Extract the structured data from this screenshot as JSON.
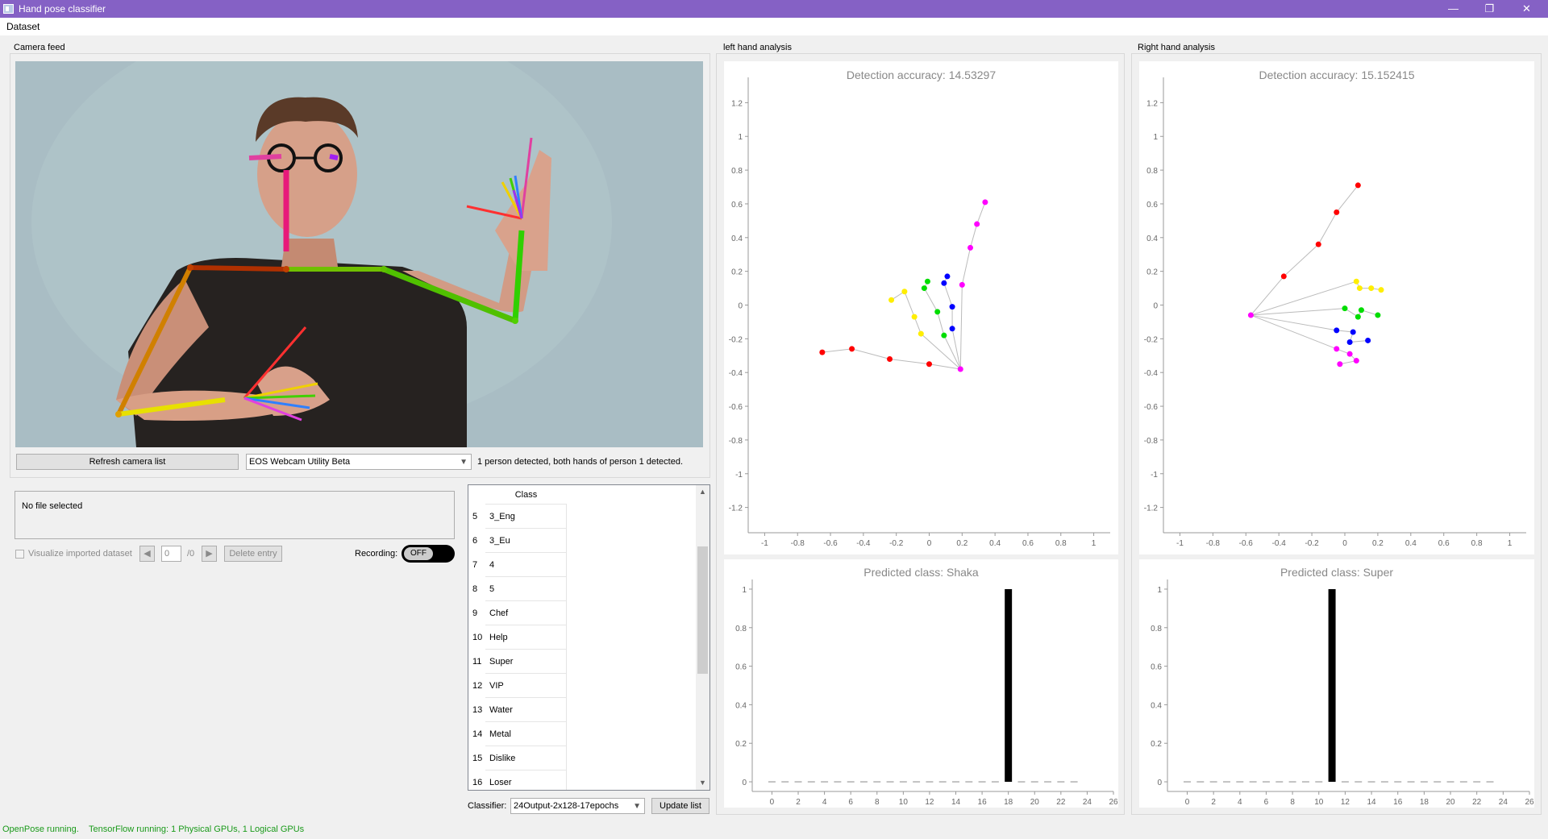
{
  "window": {
    "title": "Hand pose classifier",
    "minimize_glyph": "—",
    "restore_glyph": "❐",
    "close_glyph": "✕"
  },
  "menu": {
    "dataset": "Dataset"
  },
  "camera": {
    "group_label": "Camera feed",
    "refresh_button": "Refresh camera list",
    "selected_camera": "EOS Webcam Utility Beta",
    "detection_status": "1 person detected, both hands of person 1 detected."
  },
  "dataset": {
    "file_status": "No file selected",
    "visualize_label": "Visualize imported dataset",
    "entry_index": "0",
    "entry_total": "/0",
    "delete_button": "Delete entry",
    "recording_label": "Recording:",
    "recording_state": "OFF"
  },
  "class_list": {
    "header": "Class",
    "rows": [
      {
        "num": "5",
        "label": "3_Eng"
      },
      {
        "num": "6",
        "label": "3_Eu"
      },
      {
        "num": "7",
        "label": "4"
      },
      {
        "num": "8",
        "label": "5"
      },
      {
        "num": "9",
        "label": "Chef"
      },
      {
        "num": "10",
        "label": "Help"
      },
      {
        "num": "11",
        "label": "Super"
      },
      {
        "num": "12",
        "label": "VIP"
      },
      {
        "num": "13",
        "label": "Water"
      },
      {
        "num": "14",
        "label": "Metal"
      },
      {
        "num": "15",
        "label": "Dislike"
      },
      {
        "num": "16",
        "label": "Loser"
      }
    ]
  },
  "classifier": {
    "label": "Classifier:",
    "selected": "24Output-2x128-17epochs",
    "update_button": "Update list"
  },
  "left_hand": {
    "group_label": "left hand analysis",
    "accuracy_title": "Detection accuracy: 14.53297",
    "predicted_title": "Predicted class: Shaka"
  },
  "right_hand": {
    "group_label": "Right hand analysis",
    "accuracy_title": "Detection accuracy: 15.152415",
    "predicted_title": "Predicted class: Super"
  },
  "status": {
    "openpose": "OpenPose running.",
    "tensorflow": "TensorFlow running: 1 Physical GPUs, 1 Logical GPUs"
  },
  "colors": {
    "titlebar": "#8561c5",
    "thumb": "#ff0000",
    "index": "#ffee00",
    "middle": "#00dd00",
    "ring": "#0000ff",
    "pinky": "#ff00ff",
    "status_green": "#1a9a1a"
  },
  "chart_data": [
    {
      "type": "scatter",
      "title": "Detection accuracy: 14.53297",
      "xlim": [
        -1.1,
        1.1
      ],
      "ylim": [
        -1.35,
        1.35
      ],
      "xticks": [
        -1,
        -0.8,
        -0.6,
        -0.4,
        -0.2,
        0,
        0.2,
        0.4,
        0.6,
        0.8,
        1
      ],
      "yticks": [
        -1.2,
        -1,
        -0.8,
        -0.6,
        -0.4,
        -0.2,
        0,
        0.2,
        0.4,
        0.6,
        0.8,
        1,
        1.2
      ],
      "wrist": [
        0.19,
        -0.38
      ],
      "fingers": [
        {
          "name": "thumb",
          "color": "#ff0000",
          "points": [
            [
              0.0,
              -0.35
            ],
            [
              -0.24,
              -0.32
            ],
            [
              -0.47,
              -0.26
            ],
            [
              -0.65,
              -0.28
            ]
          ]
        },
        {
          "name": "index",
          "color": "#ffee00",
          "points": [
            [
              -0.05,
              -0.17
            ],
            [
              -0.09,
              -0.07
            ],
            [
              -0.15,
              0.08
            ],
            [
              -0.23,
              0.03
            ]
          ]
        },
        {
          "name": "middle",
          "color": "#00dd00",
          "points": [
            [
              0.09,
              -0.18
            ],
            [
              0.05,
              -0.04
            ],
            [
              -0.03,
              0.1
            ],
            [
              -0.01,
              0.14
            ]
          ]
        },
        {
          "name": "ring",
          "color": "#0000ff",
          "points": [
            [
              0.14,
              -0.14
            ],
            [
              0.14,
              -0.01
            ],
            [
              0.09,
              0.13
            ],
            [
              0.11,
              0.17
            ]
          ]
        },
        {
          "name": "pinky",
          "color": "#ff00ff",
          "points": [
            [
              0.2,
              0.12
            ],
            [
              0.25,
              0.34
            ],
            [
              0.29,
              0.48
            ],
            [
              0.34,
              0.61
            ]
          ]
        }
      ]
    },
    {
      "type": "scatter",
      "title": "Detection accuracy: 15.152415",
      "xlim": [
        -1.1,
        1.1
      ],
      "ylim": [
        -1.35,
        1.35
      ],
      "xticks": [
        -1,
        -0.8,
        -0.6,
        -0.4,
        -0.2,
        0,
        0.2,
        0.4,
        0.6,
        0.8,
        1
      ],
      "yticks": [
        -1.2,
        -1,
        -0.8,
        -0.6,
        -0.4,
        -0.2,
        0,
        0.2,
        0.4,
        0.6,
        0.8,
        1,
        1.2
      ],
      "wrist": [
        -0.57,
        -0.06
      ],
      "fingers": [
        {
          "name": "thumb",
          "color": "#ff0000",
          "points": [
            [
              -0.37,
              0.17
            ],
            [
              -0.16,
              0.36
            ],
            [
              -0.05,
              0.55
            ],
            [
              0.08,
              0.71
            ]
          ]
        },
        {
          "name": "index",
          "color": "#ffee00",
          "points": [
            [
              0.07,
              0.14
            ],
            [
              0.09,
              0.1
            ],
            [
              0.16,
              0.1
            ],
            [
              0.22,
              0.09
            ]
          ]
        },
        {
          "name": "middle",
          "color": "#00dd00",
          "points": [
            [
              0.0,
              -0.02
            ],
            [
              0.08,
              -0.07
            ],
            [
              0.1,
              -0.03
            ],
            [
              0.2,
              -0.06
            ]
          ]
        },
        {
          "name": "ring",
          "color": "#0000ff",
          "points": [
            [
              -0.05,
              -0.15
            ],
            [
              0.05,
              -0.16
            ],
            [
              0.03,
              -0.22
            ],
            [
              0.14,
              -0.21
            ]
          ]
        },
        {
          "name": "pinky",
          "color": "#ff00ff",
          "points": [
            [
              -0.05,
              -0.26
            ],
            [
              0.03,
              -0.29
            ],
            [
              0.07,
              -0.33
            ],
            [
              -0.03,
              -0.35
            ]
          ]
        }
      ]
    },
    {
      "type": "bar",
      "title": "Predicted class: Shaka",
      "categories": [
        0,
        1,
        2,
        3,
        4,
        5,
        6,
        7,
        8,
        9,
        10,
        11,
        12,
        13,
        14,
        15,
        16,
        17,
        18,
        19,
        20,
        21,
        22,
        23
      ],
      "values": [
        0,
        0,
        0,
        0,
        0,
        0,
        0,
        0,
        0,
        0,
        0,
        0,
        0,
        0,
        0,
        0,
        0,
        0,
        1,
        0,
        0,
        0,
        0,
        0
      ],
      "xlim": [
        -1.5,
        26
      ],
      "ylim": [
        -0.05,
        1.05
      ],
      "xticks": [
        0,
        2,
        4,
        6,
        8,
        10,
        12,
        14,
        16,
        18,
        20,
        22,
        24,
        26
      ],
      "yticks": [
        0,
        0.2,
        0.4,
        0.6,
        0.8,
        1
      ]
    },
    {
      "type": "bar",
      "title": "Predicted class: Super",
      "categories": [
        0,
        1,
        2,
        3,
        4,
        5,
        6,
        7,
        8,
        9,
        10,
        11,
        12,
        13,
        14,
        15,
        16,
        17,
        18,
        19,
        20,
        21,
        22,
        23
      ],
      "values": [
        0,
        0,
        0,
        0,
        0,
        0,
        0,
        0,
        0,
        0,
        0,
        1,
        0,
        0,
        0,
        0,
        0,
        0,
        0,
        0,
        0,
        0,
        0,
        0
      ],
      "xlim": [
        -1.5,
        26
      ],
      "ylim": [
        -0.05,
        1.05
      ],
      "xticks": [
        0,
        2,
        4,
        6,
        8,
        10,
        12,
        14,
        16,
        18,
        20,
        22,
        24,
        26
      ],
      "yticks": [
        0,
        0.2,
        0.4,
        0.6,
        0.8,
        1
      ]
    }
  ]
}
